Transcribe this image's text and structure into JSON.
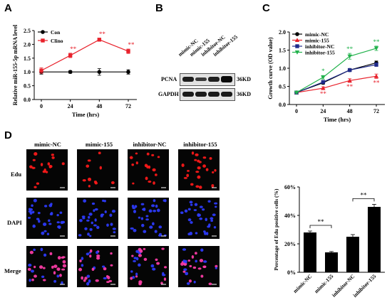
{
  "panels": {
    "a": "A",
    "b": "B",
    "c": "C",
    "d": "D"
  },
  "chart_data": [
    {
      "id": "A",
      "type": "line",
      "xlabel": "Time (hrs)",
      "ylabel": "Relative miR-155-5p mRNA level",
      "x": [
        0,
        24,
        48,
        72
      ],
      "ylim": [
        0,
        2.5
      ],
      "yticks": [
        "0.0",
        "0.5",
        "1.0",
        "1.5",
        "2.0",
        "2.5"
      ],
      "xticks": [
        "0",
        "24",
        "48",
        "72"
      ],
      "series": [
        {
          "name": "Con",
          "color": "#000000",
          "marker": "circle",
          "values": [
            1.0,
            1.0,
            1.0,
            1.0
          ],
          "errors": [
            0.08,
            0.05,
            0.12,
            0.08
          ],
          "sig": [
            "",
            "",
            "",
            ""
          ]
        },
        {
          "name": "Clino",
          "color": "#e8212b",
          "marker": "square",
          "values": [
            1.05,
            1.6,
            2.17,
            1.75
          ],
          "errors": [
            0.1,
            0.08,
            0.05,
            0.08
          ],
          "sig": [
            "",
            "**",
            "**",
            "**"
          ]
        }
      ],
      "legend": "top-left"
    },
    {
      "id": "C",
      "type": "line",
      "xlabel": "Time (hrs)",
      "ylabel": "Growth curve (OD value)",
      "x": [
        0,
        24,
        48,
        72
      ],
      "ylim": [
        0,
        2.0
      ],
      "yticks": [
        "0.0",
        "0.5",
        "1.0",
        "1.5",
        "2.0"
      ],
      "xticks": [
        "0",
        "24",
        "48",
        "72"
      ],
      "series": [
        {
          "name": "mimic-NC",
          "color": "#000000",
          "marker": "circle",
          "values": [
            0.33,
            0.6,
            0.95,
            1.15
          ],
          "errors": [
            0.02,
            0.04,
            0.04,
            0.05
          ],
          "sig": [
            "",
            "",
            "",
            ""
          ]
        },
        {
          "name": "mimic-155",
          "color": "#e8212b",
          "marker": "triangle",
          "values": [
            0.33,
            0.45,
            0.66,
            0.78
          ],
          "errors": [
            0.02,
            0.04,
            0.05,
            0.06
          ],
          "sig": [
            "",
            "**",
            "**",
            "**"
          ]
        },
        {
          "name": "inhibitor-NC",
          "color": "#1f2a8a",
          "marker": "square",
          "values": [
            0.33,
            0.62,
            0.95,
            1.1
          ],
          "errors": [
            0.02,
            0.04,
            0.04,
            0.05
          ],
          "sig": [
            "",
            "",
            "",
            ""
          ]
        },
        {
          "name": "inhibitor-155",
          "color": "#22b24c",
          "marker": "triangle-down",
          "values": [
            0.33,
            0.75,
            1.33,
            1.55
          ],
          "errors": [
            0.02,
            0.05,
            0.08,
            0.06
          ],
          "sig": [
            "",
            "*",
            "**",
            "**"
          ]
        }
      ],
      "legend": "top-left"
    },
    {
      "id": "D",
      "type": "bar",
      "ylabel": "Percentage of Edu positive cells (%)",
      "categories": [
        "mimic-NC",
        "mimic-155",
        "inhibitor-NC",
        "inhibitor-155"
      ],
      "values": [
        28,
        14,
        25,
        46
      ],
      "errors": [
        1.0,
        0.6,
        1.5,
        1.8
      ],
      "ylim": [
        0,
        60
      ],
      "yticks": [
        "0%",
        "20%",
        "40%",
        "60%"
      ],
      "brackets": [
        {
          "from": 0,
          "to": 1,
          "label": "**"
        },
        {
          "from": 2,
          "to": 3,
          "label": "**"
        }
      ]
    }
  ],
  "blot": {
    "lanes": [
      "mimic-NC",
      "mimic-155",
      "inhibitor-NC",
      "inhibitor-155"
    ],
    "rows": [
      {
        "name": "PCNA",
        "size": "36KD"
      },
      {
        "name": "GAPDH",
        "size": "36KD"
      }
    ]
  },
  "micrographs": {
    "columns": [
      "mimic-NC",
      "mimic-155",
      "inhibitor-NC",
      "inhibitor-155"
    ],
    "rows": [
      "Edu",
      "DAPI",
      "Merge"
    ],
    "colors": {
      "Edu": "#ff1a1a",
      "DAPI": "#2e3cff",
      "Merge": "#ff3da8"
    }
  }
}
